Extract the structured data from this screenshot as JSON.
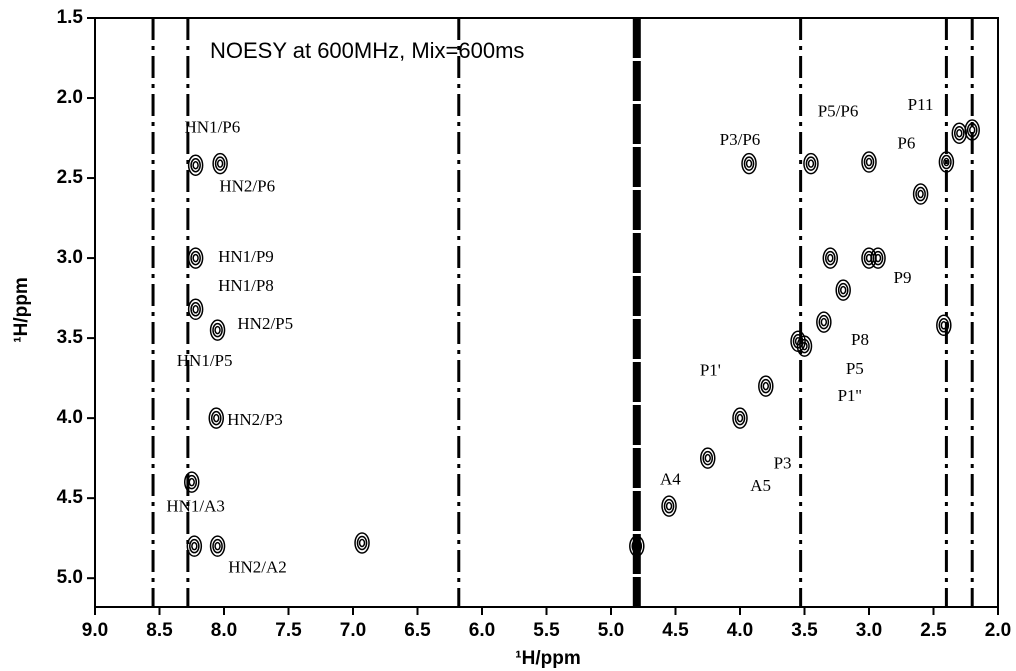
{
  "chart_data": {
    "type": "nmr-2d",
    "title": "NOESY at 600MHz, Mix=600ms",
    "xlabel": "¹H/ppm",
    "ylabel": "¹H/ppm",
    "xlim": [
      9.0,
      2.0
    ],
    "ylim": [
      1.5,
      5.18
    ],
    "y_reversed": true,
    "xticks": [
      {
        "value": 9,
        "label": "9.0"
      },
      8.5,
      {
        "value": 8,
        "label": "8.0"
      },
      7.5,
      {
        "value": 7,
        "label": "7.0"
      },
      6.5,
      {
        "value": 6,
        "label": "6.0"
      },
      5.5,
      {
        "value": 5,
        "label": "5.0"
      },
      4.5,
      {
        "value": 4,
        "label": "4.0"
      },
      3.5,
      {
        "value": 3,
        "label": "3.0"
      },
      2.5,
      {
        "value": 2,
        "label": "2.0"
      }
    ],
    "yticks": [
      1.5,
      {
        "value": 2,
        "label": "2.0"
      },
      2.5,
      {
        "value": 3,
        "label": "3.0"
      },
      3.5,
      {
        "value": 4,
        "label": "4.0"
      },
      4.5,
      {
        "value": 5,
        "label": "5.0"
      }
    ],
    "color": "#000000",
    "streaks_x": [
      8.55,
      8.28,
      6.18,
      4.8,
      3.53,
      2.4,
      2.2
    ],
    "peaks": {
      "x": [
        2.2,
        2.4,
        2.6,
        3.0,
        3.2,
        3.35,
        3.5,
        3.8,
        4.0,
        4.25,
        4.55,
        8.22,
        8.03,
        8.22,
        8.22,
        8.05,
        8.06,
        8.25,
        8.23,
        8.05,
        6.93,
        3.93,
        3.45,
        3.0,
        2.3,
        3.3,
        3.55,
        2.42,
        2.93,
        4.8
      ],
      "y": [
        2.2,
        2.4,
        2.6,
        3.0,
        3.2,
        3.4,
        3.55,
        3.8,
        4.0,
        4.25,
        4.55,
        2.42,
        2.41,
        3.0,
        3.32,
        3.45,
        4.0,
        4.4,
        4.8,
        4.8,
        4.78,
        2.41,
        2.41,
        2.4,
        2.22,
        3.0,
        3.52,
        3.42,
        3.0,
        4.8
      ]
    },
    "annotations": [
      {
        "text": "HN1/P6",
        "x": 8.09,
        "y": 2.19
      },
      {
        "text": "HN2/P6",
        "x": 7.82,
        "y": 2.56
      },
      {
        "text": "P3/P6",
        "x": 4.0,
        "y": 2.27
      },
      {
        "text": "P5/P6",
        "x": 3.24,
        "y": 2.09
      },
      {
        "text": "P11",
        "x": 2.6,
        "y": 2.05
      },
      {
        "text": "P6",
        "x": 2.71,
        "y": 2.29
      },
      {
        "text": "HN1/P9",
        "x": 7.83,
        "y": 3.0
      },
      {
        "text": "HN1/P8",
        "x": 7.83,
        "y": 3.18
      },
      {
        "text": "HN2/P5",
        "x": 7.68,
        "y": 3.42
      },
      {
        "text": "HN1/P5",
        "x": 8.15,
        "y": 3.65
      },
      {
        "text": "HN2/P3",
        "x": 7.76,
        "y": 4.02
      },
      {
        "text": "HN1/A3",
        "x": 8.22,
        "y": 4.56
      },
      {
        "text": "HN2/A2",
        "x": 7.74,
        "y": 4.94
      },
      {
        "text": "P9",
        "x": 2.74,
        "y": 3.13
      },
      {
        "text": "P8",
        "x": 3.07,
        "y": 3.52
      },
      {
        "text": "P5",
        "x": 3.11,
        "y": 3.7
      },
      {
        "text": "P1'",
        "x": 4.23,
        "y": 3.71
      },
      {
        "text": "P1''",
        "x": 3.15,
        "y": 3.87
      },
      {
        "text": "P3",
        "x": 3.67,
        "y": 4.29
      },
      {
        "text": "A5",
        "x": 3.84,
        "y": 4.43
      },
      {
        "text": "A4",
        "x": 4.54,
        "y": 4.39
      }
    ]
  }
}
